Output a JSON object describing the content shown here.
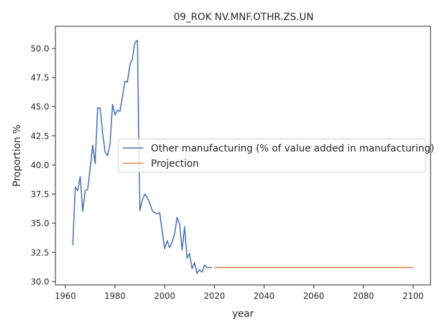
{
  "chart_data": {
    "type": "line",
    "title": "09_ROK NV.MNF.OTHR.ZS.UN",
    "xlabel": "year",
    "ylabel": "Proportion %",
    "xlim": [
      1956,
      2107
    ],
    "ylim": [
      29.7,
      51.9
    ],
    "xticks": [
      1960,
      1980,
      2000,
      2020,
      2040,
      2060,
      2080,
      2100
    ],
    "yticks": [
      30.0,
      32.5,
      35.0,
      37.5,
      40.0,
      42.5,
      45.0,
      47.5,
      50.0
    ],
    "grid": false,
    "legend_position": "center-right",
    "series": [
      {
        "name": "Other manufacturing (% of value added in manufacturing)",
        "color": "#4c72b0",
        "x": [
          1963,
          1964,
          1965,
          1966,
          1967,
          1968,
          1969,
          1970,
          1971,
          1972,
          1973,
          1974,
          1975,
          1976,
          1977,
          1978,
          1979,
          1980,
          1981,
          1982,
          1983,
          1984,
          1985,
          1986,
          1987,
          1988,
          1989,
          1990,
          1991,
          1992,
          1993,
          1994,
          1995,
          1996,
          1997,
          1998,
          1999,
          2000,
          2001,
          2002,
          2003,
          2004,
          2005,
          2006,
          2007,
          2008,
          2009,
          2010,
          2011,
          2012,
          2013,
          2014,
          2015,
          2016,
          2017,
          2018,
          2019
        ],
        "y": [
          33.1,
          38.1,
          37.8,
          39.0,
          36.0,
          37.8,
          37.9,
          39.7,
          41.7,
          40.1,
          44.9,
          44.9,
          42.8,
          41.1,
          40.8,
          41.8,
          45.2,
          44.3,
          44.7,
          44.6,
          45.9,
          47.2,
          47.1,
          48.6,
          49.1,
          50.5,
          50.7,
          36.1,
          37.0,
          37.5,
          37.2,
          36.7,
          36.1,
          35.9,
          35.8,
          35.9,
          34.3,
          32.8,
          33.5,
          32.9,
          33.4,
          34.1,
          35.5,
          34.9,
          32.7,
          34.7,
          32.0,
          32.4,
          31.1,
          31.6,
          30.7,
          31.0,
          30.8,
          31.4,
          31.2,
          31.2,
          31.2
        ]
      },
      {
        "name": "Projection",
        "color": "#dd8452",
        "x": [
          2020,
          2100
        ],
        "y": [
          31.2,
          31.2
        ]
      }
    ]
  }
}
